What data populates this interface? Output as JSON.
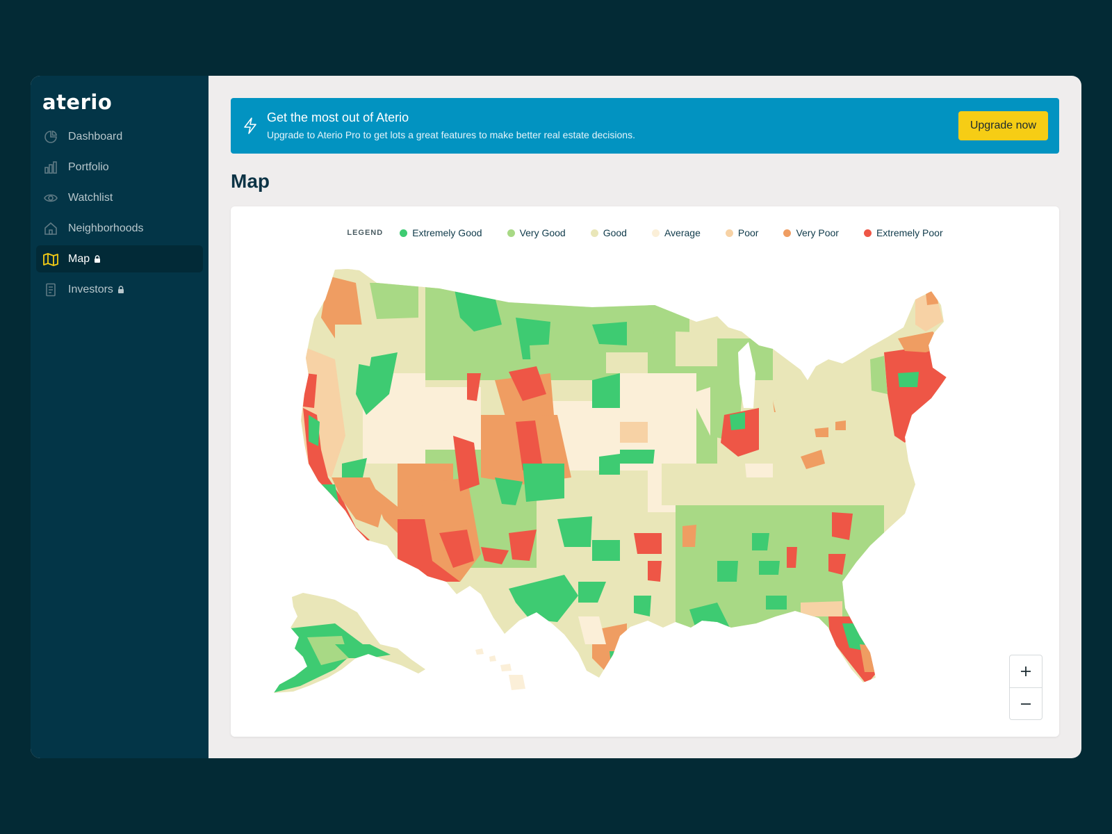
{
  "app": {
    "logo": "aterio"
  },
  "sidebar": {
    "items": [
      {
        "label": "Dashboard",
        "icon": "pie-chart-icon",
        "locked": false,
        "active": false
      },
      {
        "label": "Portfolio",
        "icon": "bar-chart-icon",
        "locked": false,
        "active": false
      },
      {
        "label": "Watchlist",
        "icon": "eye-icon",
        "locked": false,
        "active": false
      },
      {
        "label": "Neighborhoods",
        "icon": "home-icon",
        "locked": false,
        "active": false
      },
      {
        "label": "Map",
        "icon": "map-icon",
        "locked": true,
        "active": true
      },
      {
        "label": "Investors",
        "icon": "document-icon",
        "locked": true,
        "active": false
      }
    ]
  },
  "banner": {
    "icon": "lightning-icon",
    "title": "Get the most out of Aterio",
    "subtitle": "Upgrade to Aterio Pro to get lots a great features to make better real estate decisions.",
    "button_label": "Upgrade now"
  },
  "page": {
    "title": "Map"
  },
  "legend": {
    "title": "LEGEND",
    "items": [
      {
        "label": "Extremely Good",
        "color": "#3ecb72"
      },
      {
        "label": "Very Good",
        "color": "#a8d985"
      },
      {
        "label": "Good",
        "color": "#e9e6b8"
      },
      {
        "label": "Average",
        "color": "#fbefd8"
      },
      {
        "label": "Poor",
        "color": "#f7d2a5"
      },
      {
        "label": "Very Poor",
        "color": "#ef9d62"
      },
      {
        "label": "Extremely Poor",
        "color": "#ee5646"
      }
    ]
  },
  "zoom": {
    "in_label": "+",
    "out_label": "−"
  },
  "colors": {
    "background": "#032a35",
    "sidebar": "#033547",
    "banner": "#0293c1",
    "button": "#f6cd15",
    "accent_active_icon": "#f6cd15"
  }
}
